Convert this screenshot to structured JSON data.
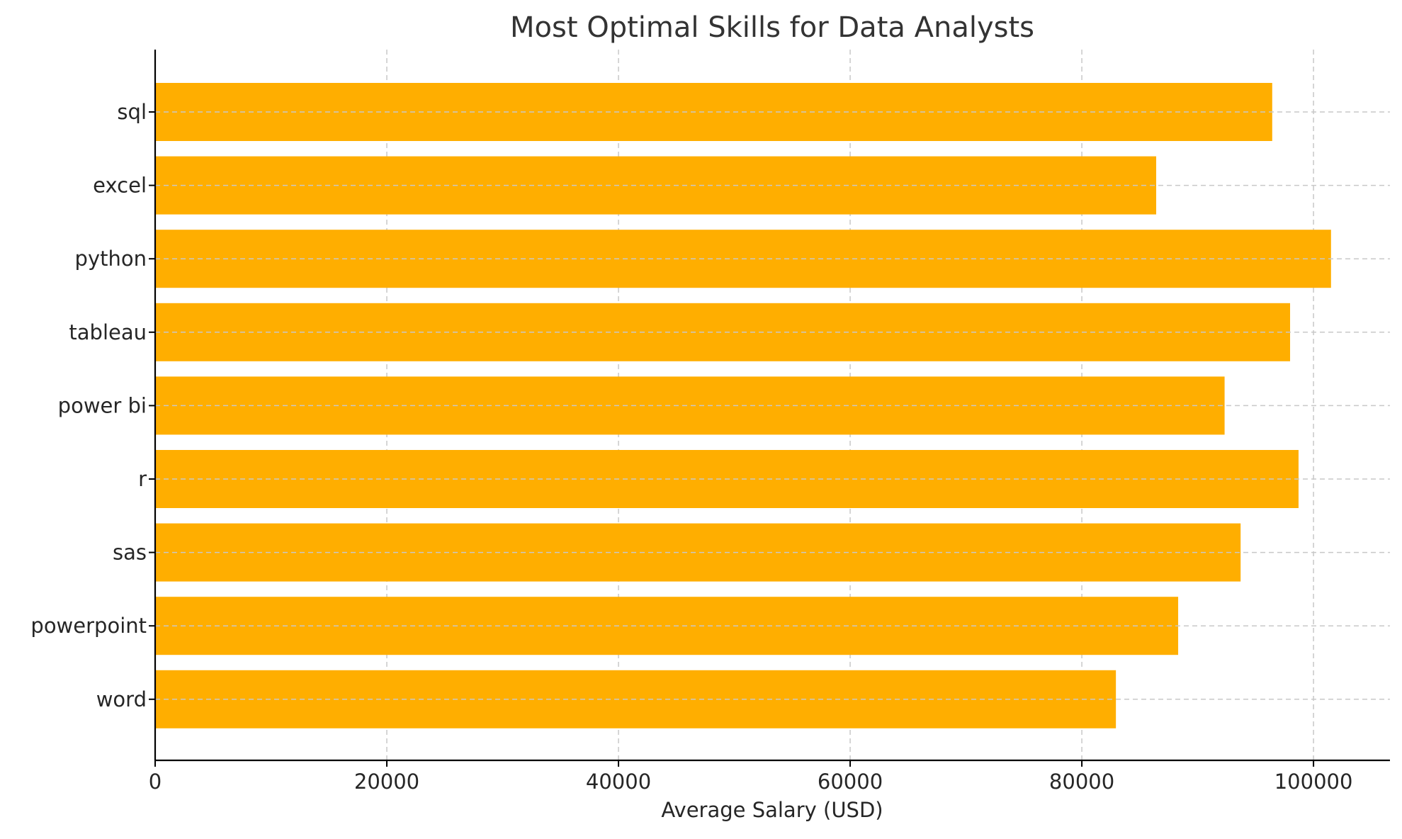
{
  "chart_data": {
    "type": "bar",
    "orientation": "horizontal",
    "title": "Most Optimal Skills for Data Analysts",
    "xlabel": "Average Salary (USD)",
    "ylabel": "",
    "categories": [
      "sql",
      "excel",
      "python",
      "tableau",
      "power bi",
      "r",
      "sas",
      "powerpoint",
      "word"
    ],
    "values": [
      96435,
      86419,
      101512,
      97978,
      92324,
      98708,
      93707,
      88316,
      82941
    ],
    "xlim": [
      0,
      106600
    ],
    "xticks": [
      0,
      20000,
      40000,
      60000,
      80000,
      100000
    ],
    "grid": true,
    "legend": "none",
    "bar_color": "#FFAE00"
  }
}
